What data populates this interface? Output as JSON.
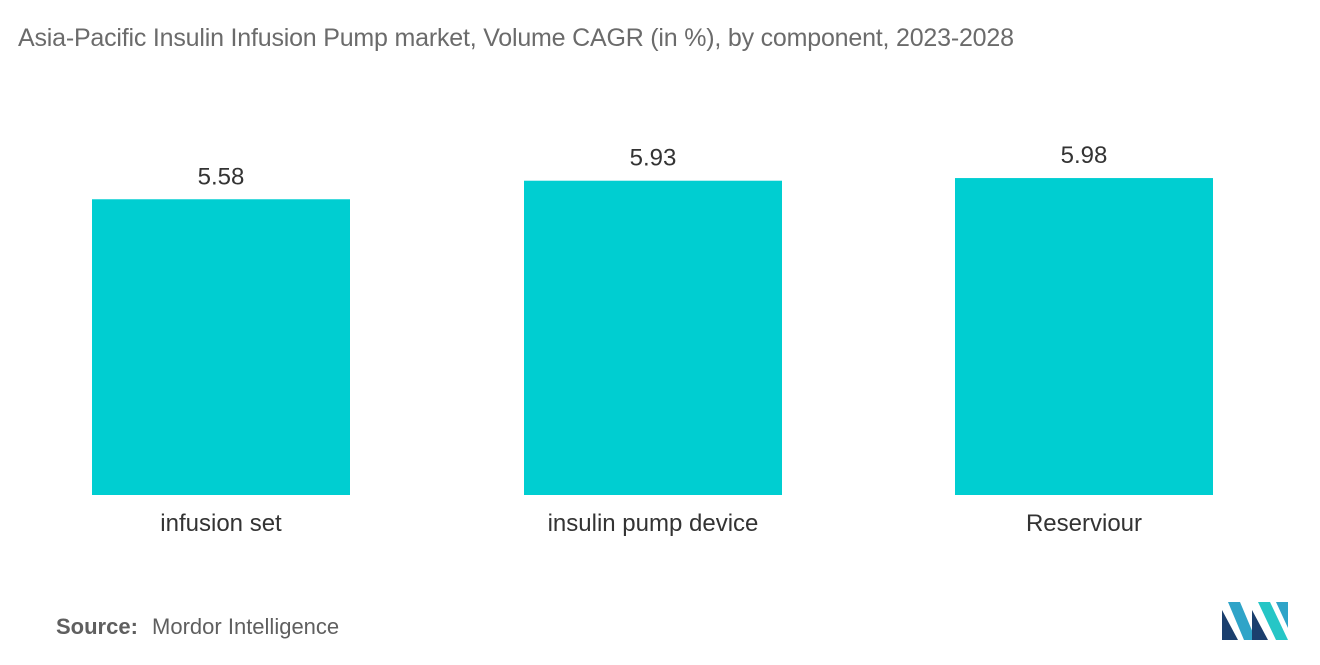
{
  "title": "Asia-Pacific Insulin Infusion Pump market, Volume CAGR (in %), by component, 2023-2028",
  "source": {
    "label": "Source:",
    "value": "Mordor Intelligence"
  },
  "colors": {
    "bar": "#00CED1",
    "title": "#6b6b6b",
    "label": "#333333"
  },
  "logo": {
    "icon": "mordor-intelligence-logo-icon",
    "colors": [
      "#1b3f6e",
      "#2fa4c8",
      "#26c6c6"
    ]
  },
  "chart_data": {
    "type": "bar",
    "title": "Asia-Pacific Insulin Infusion Pump market, Volume CAGR (in %), by component, 2023-2028",
    "categories": [
      "infusion set",
      "insulin pump device",
      "Reserviour"
    ],
    "values": [
      5.58,
      5.93,
      5.98
    ],
    "value_labels": [
      "5.58",
      "5.93",
      "5.98"
    ],
    "xlabel": "",
    "ylabel": "",
    "ylim": [
      0,
      6
    ],
    "grid": false,
    "legend": "none"
  }
}
